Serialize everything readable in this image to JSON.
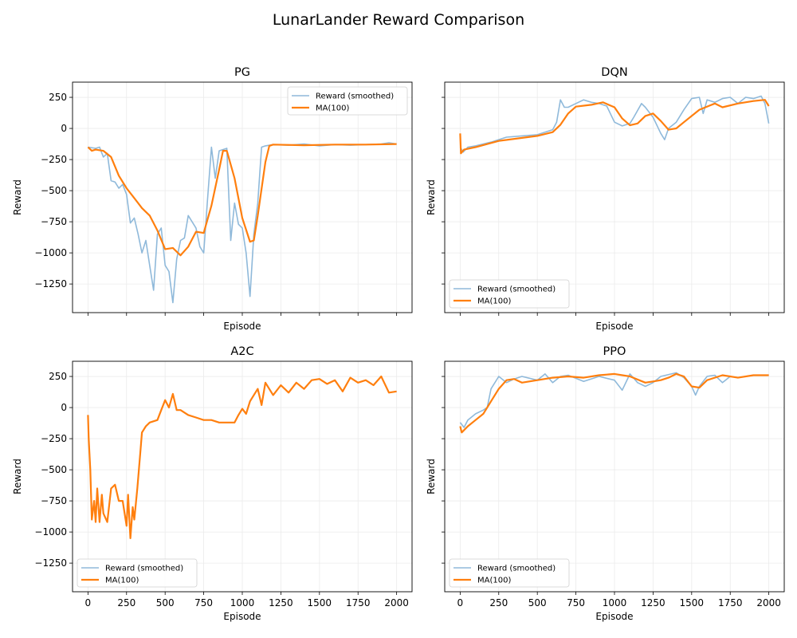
{
  "chart_data": {
    "type": "line",
    "title": "LunarLander Reward Comparison",
    "shared": {
      "xlabel": "Episode",
      "ylabel": "Reward",
      "xlim": [
        -100,
        2100
      ],
      "ylim": [
        -1480,
        372
      ],
      "xticks": [
        0,
        250,
        500,
        750,
        1000,
        1250,
        1500,
        1750,
        2000
      ],
      "xticklabels": [
        "0",
        "250",
        "500",
        "750",
        "1000",
        "1250",
        "1500",
        "1750",
        "2000"
      ],
      "yticks": [
        250,
        0,
        -250,
        -500,
        -750,
        -1000,
        -1250
      ],
      "yticklabels": [
        "250",
        "0",
        "−250",
        "−500",
        "−750",
        "−1000",
        "−1250"
      ],
      "grid": true,
      "legend_entries": [
        "Reward (smoothed)",
        "MA(100)"
      ],
      "colors": {
        "raw": "#8fb9da",
        "ma": "#ff7f0e"
      }
    },
    "panels": [
      {
        "title": "PG",
        "legend": "top-right",
        "series": [
          {
            "name": "Reward (smoothed)",
            "x": [
              0,
              50,
              75,
              100,
              125,
              150,
              175,
              200,
              225,
              250,
              275,
              300,
              325,
              350,
              375,
              400,
              425,
              450,
              475,
              500,
              525,
              550,
              575,
              600,
              625,
              650,
              700,
              725,
              750,
              775,
              800,
              825,
              850,
              900,
              925,
              950,
              975,
              1000,
              1025,
              1050,
              1075,
              1100,
              1125,
              1150,
              1200,
              1300,
              1400,
              1500,
              1600,
              1700,
              1800,
              1900,
              1950,
              2000
            ],
            "y": [
              -150,
              -160,
              -150,
              -230,
              -200,
              -420,
              -430,
              -480,
              -450,
              -530,
              -760,
              -720,
              -850,
              -1000,
              -900,
              -1100,
              -1300,
              -850,
              -800,
              -1100,
              -1150,
              -1400,
              -1050,
              -900,
              -880,
              -700,
              -800,
              -950,
              -1000,
              -570,
              -150,
              -400,
              -180,
              -160,
              -900,
              -600,
              -770,
              -800,
              -1000,
              -1350,
              -850,
              -600,
              -150,
              -140,
              -130,
              -135,
              -125,
              -140,
              -130,
              -135,
              -130,
              -125,
              -115,
              -125
            ]
          },
          {
            "name": "MA(100)",
            "x": [
              0,
              25,
              50,
              100,
              150,
              200,
              250,
              300,
              350,
              400,
              450,
              500,
              550,
              600,
              650,
              700,
              750,
              800,
              850,
              875,
              900,
              950,
              1000,
              1050,
              1075,
              1100,
              1150,
              1175,
              1200,
              1400,
              1600,
              1800,
              2000
            ],
            "y": [
              -150,
              -180,
              -170,
              -180,
              -230,
              -380,
              -480,
              -560,
              -640,
              -700,
              -820,
              -970,
              -960,
              -1020,
              -950,
              -830,
              -840,
              -620,
              -330,
              -180,
              -180,
              -400,
              -720,
              -910,
              -900,
              -700,
              -270,
              -140,
              -130,
              -135,
              -130,
              -130,
              -125
            ]
          }
        ]
      },
      {
        "title": "DQN",
        "legend": "lower-left",
        "series": [
          {
            "name": "Reward (smoothed)",
            "x": [
              0,
              20,
              50,
              100,
              200,
              300,
              400,
              500,
              600,
              625,
              650,
              675,
              700,
              750,
              800,
              850,
              900,
              950,
              1000,
              1050,
              1100,
              1125,
              1175,
              1200,
              1250,
              1300,
              1325,
              1350,
              1400,
              1450,
              1500,
              1550,
              1575,
              1600,
              1650,
              1700,
              1750,
              1800,
              1850,
              1900,
              1950,
              1975,
              2000
            ],
            "y": [
              -150,
              -190,
              -150,
              -140,
              -110,
              -70,
              -60,
              -50,
              -10,
              50,
              230,
              170,
              170,
              200,
              230,
              210,
              200,
              180,
              50,
              20,
              40,
              90,
              200,
              170,
              90,
              -40,
              -90,
              0,
              50,
              150,
              240,
              250,
              120,
              230,
              210,
              240,
              250,
              200,
              250,
              240,
              260,
              200,
              40
            ]
          },
          {
            "name": "MA(100)",
            "x": [
              0,
              5,
              25,
              100,
              250,
              500,
              600,
              650,
              700,
              750,
              850,
              925,
              1000,
              1050,
              1100,
              1150,
              1200,
              1250,
              1300,
              1350,
              1400,
              1450,
              1550,
              1650,
              1700,
              1800,
              1900,
              1975,
              2000
            ],
            "y": [
              -40,
              -200,
              -170,
              -150,
              -100,
              -60,
              -30,
              30,
              120,
              175,
              190,
              210,
              170,
              80,
              25,
              40,
              100,
              120,
              60,
              -10,
              0,
              50,
              150,
              200,
              170,
              200,
              220,
              230,
              180
            ]
          }
        ]
      },
      {
        "title": "A2C",
        "legend": "lower-left",
        "series": [
          {
            "name": "Reward (smoothed)",
            "x": [
              0,
              5,
              15,
              25,
              40,
              50,
              60,
              75,
              90,
              100,
              125,
              150,
              175,
              200,
              225,
              250,
              260,
              275,
              290,
              300,
              320,
              340,
              350,
              375,
              400,
              450,
              475,
              500,
              525,
              550,
              575,
              600,
              650,
              700,
              750,
              800,
              850,
              900,
              950,
              975,
              1000,
              1025,
              1050,
              1075,
              1100,
              1125,
              1150,
              1200,
              1250,
              1300,
              1350,
              1400,
              1450,
              1500,
              1550,
              1600,
              1650,
              1700,
              1750,
              1800,
              1850,
              1900,
              1950,
              2000
            ],
            "y": [
              -60,
              -250,
              -500,
              -900,
              -750,
              -920,
              -650,
              -920,
              -700,
              -850,
              -920,
              -650,
              -620,
              -750,
              -750,
              -950,
              -700,
              -1050,
              -800,
              -900,
              -650,
              -350,
              -200,
              -150,
              -120,
              -100,
              -20,
              60,
              0,
              110,
              -20,
              -20,
              -60,
              -80,
              -100,
              -100,
              -120,
              -120,
              -120,
              -60,
              -10,
              -50,
              50,
              100,
              150,
              20,
              200,
              100,
              180,
              120,
              200,
              150,
              220,
              230,
              190,
              220,
              130,
              240,
              200,
              220,
              180,
              250,
              120,
              130
            ]
          },
          {
            "name": "MA(100)",
            "x": [
              0,
              5,
              15,
              25,
              40,
              50,
              60,
              75,
              90,
              100,
              125,
              150,
              175,
              200,
              225,
              250,
              260,
              275,
              290,
              300,
              320,
              340,
              350,
              375,
              400,
              450,
              475,
              500,
              525,
              550,
              575,
              600,
              650,
              700,
              750,
              800,
              850,
              900,
              950,
              975,
              1000,
              1025,
              1050,
              1075,
              1100,
              1125,
              1150,
              1200,
              1250,
              1300,
              1350,
              1400,
              1450,
              1500,
              1550,
              1600,
              1650,
              1700,
              1750,
              1800,
              1850,
              1900,
              1950,
              2000
            ],
            "y": [
              -60,
              -250,
              -500,
              -900,
              -750,
              -920,
              -650,
              -920,
              -700,
              -850,
              -920,
              -650,
              -620,
              -750,
              -750,
              -950,
              -700,
              -1050,
              -800,
              -900,
              -650,
              -350,
              -200,
              -150,
              -120,
              -100,
              -20,
              60,
              0,
              110,
              -20,
              -20,
              -60,
              -80,
              -100,
              -100,
              -120,
              -120,
              -120,
              -60,
              -10,
              -50,
              50,
              100,
              150,
              20,
              200,
              100,
              180,
              120,
              200,
              150,
              220,
              230,
              190,
              220,
              130,
              240,
              200,
              220,
              180,
              250,
              120,
              130
            ]
          }
        ]
      },
      {
        "title": "PPO",
        "legend": "lower-left",
        "series": [
          {
            "name": "Reward (smoothed)",
            "x": [
              0,
              25,
              50,
              100,
              150,
              175,
              200,
              250,
              300,
              350,
              400,
              500,
              550,
              600,
              650,
              700,
              800,
              900,
              1000,
              1050,
              1100,
              1150,
              1200,
              1250,
              1300,
              1400,
              1450,
              1500,
              1525,
              1550,
              1600,
              1650,
              1700,
              1750,
              1800,
              1900,
              2000
            ],
            "y": [
              -120,
              -160,
              -100,
              -50,
              -20,
              0,
              150,
              250,
              200,
              230,
              250,
              220,
              270,
              200,
              250,
              260,
              210,
              250,
              220,
              140,
              270,
              200,
              170,
              200,
              250,
              280,
              240,
              170,
              100,
              170,
              250,
              260,
              200,
              250,
              240,
              260,
              260
            ]
          },
          {
            "name": "MA(100)",
            "x": [
              0,
              10,
              50,
              100,
              150,
              200,
              250,
              300,
              350,
              400,
              500,
              600,
              700,
              800,
              900,
              1000,
              1100,
              1200,
              1250,
              1300,
              1350,
              1400,
              1450,
              1500,
              1550,
              1600,
              1700,
              1800,
              1900,
              2000
            ],
            "y": [
              -150,
              -200,
              -150,
              -100,
              -50,
              50,
              150,
              220,
              230,
              200,
              220,
              240,
              250,
              240,
              260,
              270,
              250,
              200,
              210,
              220,
              240,
              270,
              250,
              170,
              160,
              220,
              260,
              240,
              260,
              260
            ]
          }
        ]
      }
    ]
  }
}
